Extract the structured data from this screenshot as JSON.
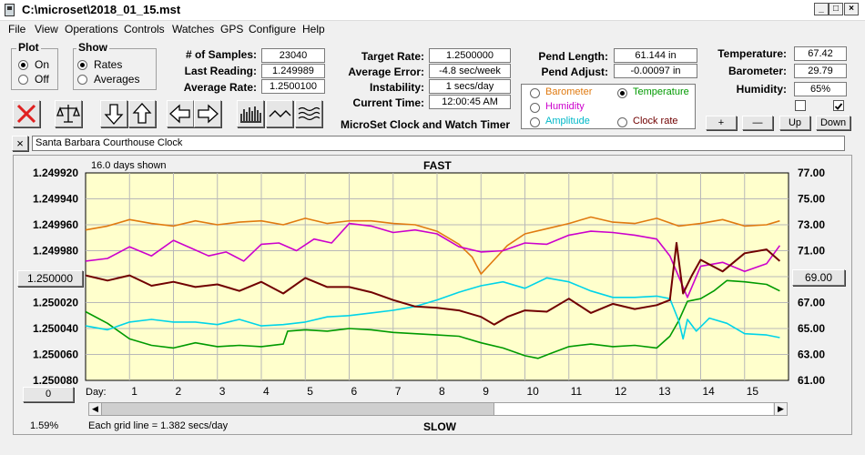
{
  "window": {
    "title": "C:\\microset\\2018_01_15.mst"
  },
  "menu": [
    "File",
    "View",
    "Operations",
    "Controls",
    "Watches",
    "GPS",
    "Configure",
    "Help"
  ],
  "plot_group": {
    "legend": "Plot",
    "on": "On",
    "off": "Off",
    "selected": "On"
  },
  "show_group": {
    "legend": "Show",
    "rates": "Rates",
    "averages": "Averages",
    "selected": "Rates"
  },
  "stats": {
    "samples_label": "# of Samples:",
    "samples": "23040",
    "last_label": "Last Reading:",
    "last": "1.249989",
    "avg_rate_label": "Average Rate:",
    "avg_rate": "1.2500100"
  },
  "target": {
    "rate_label": "Target Rate:",
    "rate": "1.2500000",
    "error_label": "Average Error:",
    "error": "-4.8 sec/week",
    "instab_label": "Instability:",
    "instab": "1 secs/day",
    "time_label": "Current Time:",
    "time": "12:00:45 AM"
  },
  "app_label": "MicroSet Clock and Watch Timer",
  "pend": {
    "length_label": "Pend Length:",
    "length": "61.144 in",
    "adjust_label": "Pend Adjust:",
    "adjust": "-0.00097 in"
  },
  "sensor_select": {
    "barometer": "Barometer",
    "temperature": "Temperature",
    "humidity": "Humidity",
    "amplitude": "Amplitude",
    "clock_rate": "Clock rate",
    "selected": "Temperature",
    "colors": {
      "barometer": "#e07a10",
      "temperature": "#009a00",
      "humidity": "#cc00cc",
      "amplitude": "#00b8c8",
      "clock_rate": "#700000"
    }
  },
  "env": {
    "temp_label": "Temperature:",
    "temp": "67.42",
    "baro_label": "Barometer:",
    "baro": "29.79",
    "hum_label": "Humidity:",
    "hum": "65%"
  },
  "scale_buttons": {
    "plus": "+",
    "minus": "—",
    "up": "Up",
    "down": "Down"
  },
  "checkboxes": {
    "left_checked": false,
    "right_checked": true
  },
  "toolbar_icons": [
    "close-x-icon",
    "balance-scale-icon",
    "arrow-down-icon",
    "arrow-up-icon",
    "arrow-left-icon",
    "arrow-right-icon",
    "histogram-icon",
    "wave-icon",
    "multi-wave-icon"
  ],
  "clock_name": {
    "close": "×",
    "value": "Santa Barbara Courthouse Clock"
  },
  "plot": {
    "days_shown": "16.0 days shown",
    "top_label": "FAST",
    "bottom_label": "SLOW",
    "grid_note": "Each grid line = 1.382 secs/day",
    "day_label": "Day:",
    "left_button": "1.250000",
    "right_button": "69.00",
    "bottom_left_button": "0",
    "percent": "1.59%"
  },
  "chart_data": {
    "type": "line",
    "left_axis": {
      "ticks": [
        "1.249920",
        "1.249940",
        "1.249960",
        "1.249980",
        "",
        "1.250020",
        "1.250040",
        "1.250060",
        "1.250080"
      ],
      "ylim": [
        1.24992,
        1.25008
      ],
      "inverted": true
    },
    "right_axis": {
      "ticks": [
        "77.00",
        "75.00",
        "73.00",
        "71.00",
        "",
        "67.00",
        "65.00",
        "63.00",
        "61.00"
      ],
      "ylim": [
        61,
        77
      ]
    },
    "x_ticks": [
      "1",
      "2",
      "3",
      "4",
      "5",
      "6",
      "7",
      "8",
      "9",
      "10",
      "11",
      "12",
      "13",
      "14",
      "15"
    ],
    "xlim": [
      0,
      16
    ],
    "background": "#ffffcc",
    "series": [
      {
        "color": "#e07a10",
        "x": [
          0,
          0.5,
          1,
          1.5,
          2,
          2.5,
          3,
          3.5,
          4,
          4.5,
          5,
          5.5,
          6,
          6.5,
          7,
          7.5,
          8,
          8.5,
          8.8,
          9,
          9.3,
          9.6,
          10,
          10.5,
          11,
          11.5,
          12,
          12.5,
          13,
          13.5,
          14,
          14.5,
          15,
          15.5,
          15.8
        ],
        "y": [
          72.6,
          72.9,
          73.4,
          73.1,
          72.9,
          73.3,
          73.0,
          73.2,
          73.3,
          73.0,
          73.5,
          73.1,
          73.3,
          73.3,
          73.1,
          73.0,
          72.5,
          71.5,
          70.5,
          69.2,
          70.3,
          71.4,
          72.3,
          72.7,
          73.1,
          73.6,
          73.2,
          73.1,
          73.5,
          72.9,
          73.1,
          73.4,
          72.9,
          73.0,
          73.3
        ]
      },
      {
        "color": "#cc00cc",
        "x": [
          0,
          0.5,
          1,
          1.5,
          2,
          2.4,
          2.8,
          3.2,
          3.6,
          4,
          4.4,
          4.8,
          5.2,
          5.6,
          6,
          6.5,
          7,
          7.5,
          8,
          8.5,
          9,
          9.5,
          10,
          10.5,
          11,
          11.5,
          12,
          12.5,
          13,
          13.3,
          13.5,
          13.7,
          14,
          14.5,
          15,
          15.5,
          15.8
        ],
        "y": [
          70.2,
          70.4,
          71.3,
          70.6,
          71.8,
          71.2,
          70.6,
          70.9,
          70.2,
          71.5,
          71.6,
          71.0,
          71.9,
          71.6,
          73.1,
          72.9,
          72.4,
          72.6,
          72.3,
          71.3,
          70.9,
          71.0,
          71.6,
          71.5,
          72.2,
          72.5,
          72.4,
          72.2,
          71.9,
          70.6,
          69.0,
          67.4,
          69.8,
          70.1,
          69.4,
          70.0,
          71.4
        ]
      },
      {
        "color": "#009a00",
        "x": [
          0,
          0.5,
          1,
          1.5,
          2,
          2.5,
          3,
          3.5,
          4,
          4.5,
          4.6,
          5,
          5.5,
          6,
          6.5,
          7,
          7.5,
          8,
          8.5,
          9,
          9.5,
          10,
          10.3,
          10.6,
          11,
          11.5,
          12,
          12.5,
          13,
          13.3,
          13.5,
          13.7,
          14,
          14.3,
          14.6,
          15,
          15.5,
          15.8
        ],
        "y": [
          66.3,
          65.4,
          64.2,
          63.7,
          63.5,
          63.9,
          63.6,
          63.7,
          63.6,
          63.8,
          64.8,
          64.9,
          64.8,
          65.0,
          64.9,
          64.7,
          64.6,
          64.5,
          64.4,
          63.9,
          63.5,
          62.9,
          62.7,
          63.1,
          63.6,
          63.8,
          63.6,
          63.7,
          63.5,
          64.4,
          65.6,
          67.1,
          67.3,
          67.9,
          68.7,
          68.6,
          68.4,
          67.9
        ]
      },
      {
        "color": "#00d4e8",
        "x": [
          0,
          0.5,
          1,
          1.5,
          2,
          2.5,
          3,
          3.5,
          4,
          4.5,
          5,
          5.5,
          6,
          6.5,
          7,
          7.5,
          8,
          8.5,
          9,
          9.5,
          10,
          10.5,
          11,
          11.5,
          12,
          12.5,
          13,
          13.3,
          13.5,
          13.6,
          13.7,
          13.9,
          14.2,
          14.6,
          15,
          15.5,
          15.8
        ],
        "y": [
          65.2,
          64.9,
          65.5,
          65.7,
          65.5,
          65.5,
          65.3,
          65.7,
          65.2,
          65.3,
          65.5,
          65.9,
          66.0,
          66.2,
          66.4,
          66.7,
          67.2,
          67.8,
          68.3,
          68.6,
          68.1,
          68.9,
          68.6,
          67.9,
          67.4,
          67.4,
          67.5,
          67.3,
          65.6,
          64.2,
          65.7,
          64.8,
          65.8,
          65.4,
          64.6,
          64.5,
          64.3
        ]
      },
      {
        "color": "#700000",
        "x": [
          0,
          0.5,
          1,
          1.5,
          2,
          2.5,
          3,
          3.5,
          4,
          4.5,
          5,
          5.5,
          6,
          6.5,
          7,
          7.5,
          8,
          8.5,
          9,
          9.3,
          9.6,
          10,
          10.5,
          11,
          11.5,
          12,
          12.5,
          13,
          13.3,
          13.45,
          13.6,
          13.8,
          14,
          14.5,
          15,
          15.5,
          15.8
        ],
        "y": [
          1.249999,
          1.250003,
          1.249999,
          1.250007,
          1.250004,
          1.250008,
          1.250006,
          1.250011,
          1.250004,
          1.250013,
          1.250001,
          1.250008,
          1.250008,
          1.250012,
          1.250018,
          1.250023,
          1.250024,
          1.250026,
          1.250031,
          1.250037,
          1.250031,
          1.250026,
          1.250027,
          1.250017,
          1.250028,
          1.250021,
          1.250025,
          1.250022,
          1.250018,
          1.249974,
          1.250013,
          1.249999,
          1.249987,
          1.249996,
          1.249982,
          1.249979,
          1.249988
        ],
        "axis": "left"
      }
    ]
  }
}
